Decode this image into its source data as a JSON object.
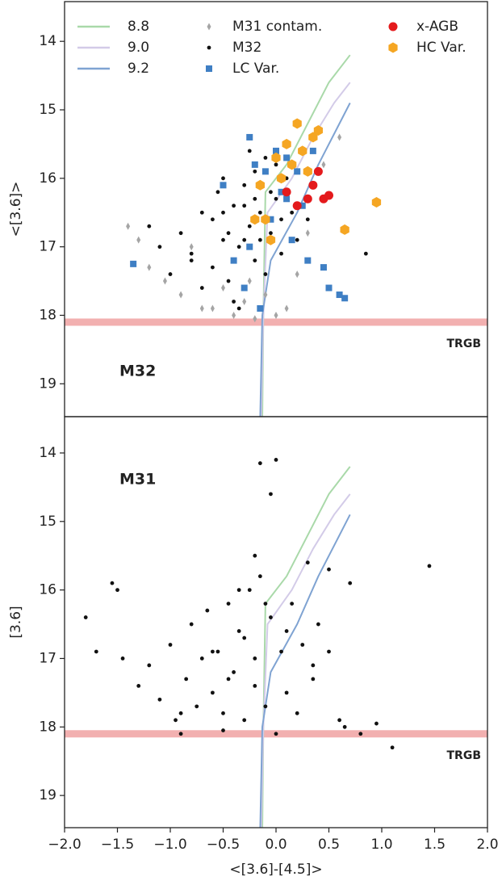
{
  "chart_data": [
    {
      "type": "scatter",
      "ylabel": "<[3.6]>",
      "panel_label": "M32",
      "xlim": [
        -2.0,
        2.0
      ],
      "ylim": [
        19.48,
        13.42
      ],
      "yticks": [
        14,
        15,
        16,
        17,
        18,
        19
      ],
      "hline": {
        "value": 18.1,
        "label": "TRGB",
        "color": "#f2b0b0"
      },
      "series": [
        {
          "name": "8.8",
          "marker": "line",
          "color": "#a9d9a9",
          "x": [
            -0.13,
            -0.12,
            -0.1,
            0.1,
            0.3,
            0.5,
            0.7
          ],
          "y": [
            19.5,
            18.0,
            16.2,
            15.8,
            15.2,
            14.6,
            14.2
          ]
        },
        {
          "name": "9.0",
          "marker": "line",
          "color": "#d3cbe8",
          "x": [
            -0.14,
            -0.12,
            -0.08,
            0.15,
            0.35,
            0.55,
            0.7
          ],
          "y": [
            19.5,
            18.0,
            16.5,
            16.0,
            15.4,
            14.9,
            14.6
          ]
        },
        {
          "name": "9.2",
          "marker": "line",
          "color": "#7fa3d2",
          "x": [
            -0.15,
            -0.13,
            -0.05,
            0.2,
            0.4,
            0.6,
            0.7
          ],
          "y": [
            19.5,
            18.0,
            17.2,
            16.5,
            15.8,
            15.2,
            14.9
          ]
        },
        {
          "name": "M31 contam.",
          "marker": "diamond",
          "color": "#a5a5a5",
          "x": [
            -1.3,
            -1.2,
            -1.05,
            -0.9,
            -0.7,
            -0.5,
            -0.4,
            -0.3,
            -0.2,
            -0.1,
            0.0,
            0.1,
            0.2,
            -0.6,
            -0.25,
            -1.4,
            0.3,
            0.45,
            0.6,
            -0.8
          ],
          "y": [
            16.9,
            17.3,
            17.5,
            17.7,
            17.9,
            17.6,
            18.0,
            17.8,
            18.05,
            17.7,
            18.0,
            17.9,
            17.4,
            17.9,
            17.5,
            16.7,
            16.8,
            15.8,
            15.4,
            17.0
          ]
        },
        {
          "name": "M32",
          "marker": "dot",
          "color": "#111111",
          "x": [
            -0.9,
            -0.8,
            -0.7,
            -0.6,
            -0.55,
            -0.5,
            -0.45,
            -0.4,
            -0.35,
            -0.3,
            -0.3,
            -0.25,
            -0.2,
            -0.2,
            -0.15,
            -0.1,
            -0.05,
            0.0,
            0.05,
            0.1,
            -0.6,
            -0.5,
            -0.4,
            -0.3,
            -0.2,
            -0.1,
            0.0,
            -0.7,
            -0.5,
            -0.35,
            -0.25,
            -0.15,
            -0.05,
            0.05,
            -0.8,
            -0.45,
            -0.3,
            0.15,
            0.2,
            0.85,
            -1.2,
            -1.1,
            -1.0,
            0.3
          ],
          "y": [
            16.8,
            17.1,
            16.5,
            17.3,
            16.2,
            16.9,
            17.5,
            16.4,
            17.0,
            16.1,
            17.6,
            16.7,
            15.9,
            17.2,
            16.5,
            15.7,
            16.8,
            16.3,
            17.1,
            16.0,
            16.6,
            16.0,
            17.8,
            16.9,
            16.3,
            17.4,
            15.8,
            17.6,
            16.5,
            17.9,
            15.6,
            16.9,
            16.2,
            16.6,
            17.2,
            16.8,
            16.4,
            16.5,
            16.9,
            17.1,
            16.7,
            17.0,
            17.4,
            16.6
          ]
        },
        {
          "name": "LC Var.",
          "marker": "square",
          "color": "#3f7fc4",
          "x": [
            -1.35,
            -0.5,
            -0.4,
            -0.3,
            -0.2,
            -0.25,
            -0.1,
            -0.05,
            0.0,
            0.05,
            0.1,
            0.15,
            0.2,
            0.25,
            0.3,
            0.45,
            0.5,
            0.6,
            0.65,
            -0.25,
            -0.15,
            0.35,
            0.1
          ],
          "y": [
            17.25,
            16.1,
            17.2,
            17.6,
            15.8,
            17.0,
            15.9,
            16.6,
            15.6,
            16.2,
            15.7,
            16.9,
            15.9,
            16.4,
            17.2,
            17.3,
            17.6,
            17.7,
            17.75,
            15.4,
            17.9,
            15.6,
            16.3
          ]
        },
        {
          "name": "x-AGB",
          "marker": "circle",
          "color": "#e41a1c",
          "x": [
            0.05,
            0.1,
            0.15,
            0.2,
            0.3,
            0.35,
            0.4,
            0.45,
            0.5
          ],
          "y": [
            16.0,
            16.2,
            15.8,
            16.4,
            16.3,
            16.1,
            15.9,
            16.3,
            16.25
          ]
        },
        {
          "name": "HC Var.",
          "marker": "hexagon",
          "color": "#f5a623",
          "x": [
            -0.15,
            -0.2,
            -0.1,
            0.0,
            0.05,
            0.1,
            0.15,
            0.2,
            0.25,
            0.3,
            0.35,
            0.95,
            0.65,
            0.4,
            -0.05
          ],
          "y": [
            16.1,
            16.6,
            16.6,
            15.7,
            16.0,
            15.5,
            15.8,
            15.2,
            15.6,
            15.9,
            15.4,
            16.35,
            16.75,
            15.3,
            16.9
          ]
        }
      ]
    },
    {
      "type": "scatter",
      "ylabel": "[3.6]",
      "xlabel": "<[3.6]-[4.5]>",
      "panel_label": "M31",
      "xlim": [
        -2.0,
        2.0
      ],
      "ylim": [
        19.47,
        13.47
      ],
      "yticks": [
        14,
        15,
        16,
        17,
        18,
        19
      ],
      "xticks": [
        {
          "value": -2.0,
          "label": "−2.0"
        },
        {
          "value": -1.5,
          "label": "−1.5"
        },
        {
          "value": -1.0,
          "label": "−1.0"
        },
        {
          "value": -0.5,
          "label": "−0.5"
        },
        {
          "value": 0.0,
          "label": "0.0"
        },
        {
          "value": 0.5,
          "label": "0.5"
        },
        {
          "value": 1.0,
          "label": "1.0"
        },
        {
          "value": 1.5,
          "label": "1.5"
        },
        {
          "value": 2.0,
          "label": "2.0"
        }
      ],
      "hline": {
        "value": 18.1,
        "label": "TRGB",
        "color": "#f2b0b0"
      },
      "series": [
        {
          "marker": "line",
          "color": "#a9d9a9",
          "x": [
            -0.13,
            -0.12,
            -0.1,
            0.1,
            0.3,
            0.5,
            0.7
          ],
          "y": [
            19.5,
            18.0,
            16.2,
            15.8,
            15.2,
            14.6,
            14.2
          ]
        },
        {
          "marker": "line",
          "color": "#d3cbe8",
          "x": [
            -0.14,
            -0.12,
            -0.08,
            0.15,
            0.35,
            0.55,
            0.7
          ],
          "y": [
            19.5,
            18.0,
            16.5,
            16.0,
            15.4,
            14.9,
            14.6
          ]
        },
        {
          "marker": "line",
          "color": "#7fa3d2",
          "x": [
            -0.15,
            -0.13,
            -0.05,
            0.2,
            0.4,
            0.6,
            0.7
          ],
          "y": [
            19.5,
            18.0,
            17.2,
            16.5,
            15.8,
            15.2,
            14.9
          ]
        },
        {
          "marker": "dot",
          "color": "#111111",
          "x": [
            -1.8,
            -1.7,
            -1.55,
            -1.5,
            -1.45,
            -1.3,
            -1.2,
            -1.1,
            -1.0,
            -0.95,
            -0.9,
            -0.85,
            -0.8,
            -0.75,
            -0.7,
            -0.65,
            -0.6,
            -0.55,
            -0.5,
            -0.45,
            -0.4,
            -0.35,
            -0.3,
            -0.25,
            -0.2,
            -0.15,
            -0.1,
            -0.05,
            0.0,
            0.05,
            0.1,
            0.15,
            0.2,
            0.25,
            0.3,
            0.35,
            0.4,
            0.5,
            0.6,
            0.65,
            0.7,
            0.8,
            0.95,
            1.1,
            1.45,
            -0.6,
            -0.45,
            -0.3,
            -0.2,
            -0.1,
            -0.15,
            -0.2,
            -0.05,
            0.1,
            0.35,
            0.5,
            -0.9,
            -0.5,
            -0.35,
            0.0
          ],
          "y": [
            16.4,
            16.9,
            15.9,
            16.0,
            17.0,
            17.4,
            17.1,
            17.6,
            16.8,
            17.9,
            18.1,
            17.3,
            16.5,
            17.7,
            17.0,
            16.3,
            17.5,
            16.9,
            17.8,
            16.2,
            17.2,
            16.6,
            17.9,
            16.0,
            17.4,
            15.8,
            17.7,
            16.4,
            18.1,
            16.9,
            17.5,
            16.2,
            17.8,
            16.8,
            15.6,
            17.1,
            16.5,
            15.7,
            17.9,
            18.0,
            15.9,
            18.1,
            17.95,
            18.3,
            15.65,
            16.9,
            17.3,
            16.7,
            17.0,
            16.2,
            14.15,
            15.5,
            14.6,
            16.6,
            17.3,
            16.9,
            17.8,
            18.05,
            16.0,
            14.1
          ]
        }
      ]
    }
  ]
}
